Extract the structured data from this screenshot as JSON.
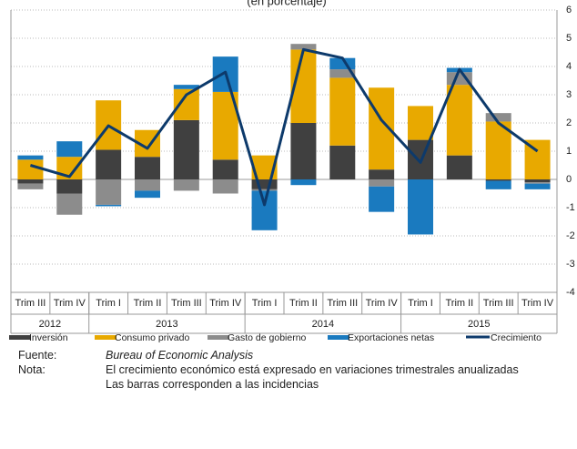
{
  "chart_data": {
    "type": "bar",
    "stacked": true,
    "title": "(en porcentaje)",
    "categories": [
      "Trim III",
      "Trim IV",
      "Trim I",
      "Trim II",
      "Trim III",
      "Trim IV",
      "Trim I",
      "Trim II",
      "Trim III",
      "Trim IV",
      "Trim I",
      "Trim II",
      "Trim III",
      "Trim IV"
    ],
    "groups": [
      {
        "label": "2012",
        "count": 2
      },
      {
        "label": "2013",
        "count": 4
      },
      {
        "label": "2014",
        "count": 4
      },
      {
        "label": "2015",
        "count": 4
      }
    ],
    "series": [
      {
        "name": "Inversión",
        "color": "#404040",
        "values": [
          -0.15,
          -0.5,
          1.05,
          0.8,
          2.1,
          0.7,
          -0.35,
          2.0,
          1.2,
          0.35,
          1.4,
          0.85,
          -0.05,
          -0.1
        ]
      },
      {
        "name": "Consumo privado",
        "color": "#e8a900",
        "values": [
          0.7,
          0.8,
          1.75,
          0.95,
          1.1,
          2.4,
          0.85,
          2.6,
          2.4,
          2.9,
          1.2,
          2.5,
          2.05,
          1.4
        ]
      },
      {
        "name": "Gasto de gobierno",
        "color": "#8c8c8c",
        "values": [
          -0.2,
          -0.75,
          -0.9,
          -0.4,
          -0.4,
          -0.5,
          -0.05,
          0.2,
          0.3,
          -0.25,
          0.0,
          0.45,
          0.3,
          -0.05
        ]
      },
      {
        "name": "Exportaciones netas",
        "color": "#1a7abf",
        "values": [
          0.15,
          0.55,
          -0.05,
          -0.25,
          0.15,
          1.25,
          -1.4,
          -0.2,
          0.4,
          -0.9,
          -1.95,
          0.15,
          -0.3,
          -0.2
        ]
      },
      {
        "name": "Crecimiento",
        "type": "line",
        "color": "#0d3a6b",
        "values": [
          0.5,
          0.1,
          1.9,
          1.1,
          3.0,
          3.8,
          -0.9,
          4.6,
          4.3,
          2.1,
          0.6,
          3.9,
          2.0,
          1.0
        ]
      }
    ],
    "ylim": [
      -4,
      6
    ],
    "yticks": [
      -4,
      -3,
      -2,
      -1,
      0,
      1,
      2,
      3,
      4,
      5,
      6
    ],
    "grid": true
  },
  "notes": [
    {
      "label": "Fuente:",
      "lines": [
        "Bureau of Economic Analysis"
      ]
    },
    {
      "label": "Nota:",
      "lines": [
        "El crecimiento económico está expresado en variaciones trimestrales anualizadas",
        "Las barras corresponden a las incidencias"
      ]
    }
  ]
}
